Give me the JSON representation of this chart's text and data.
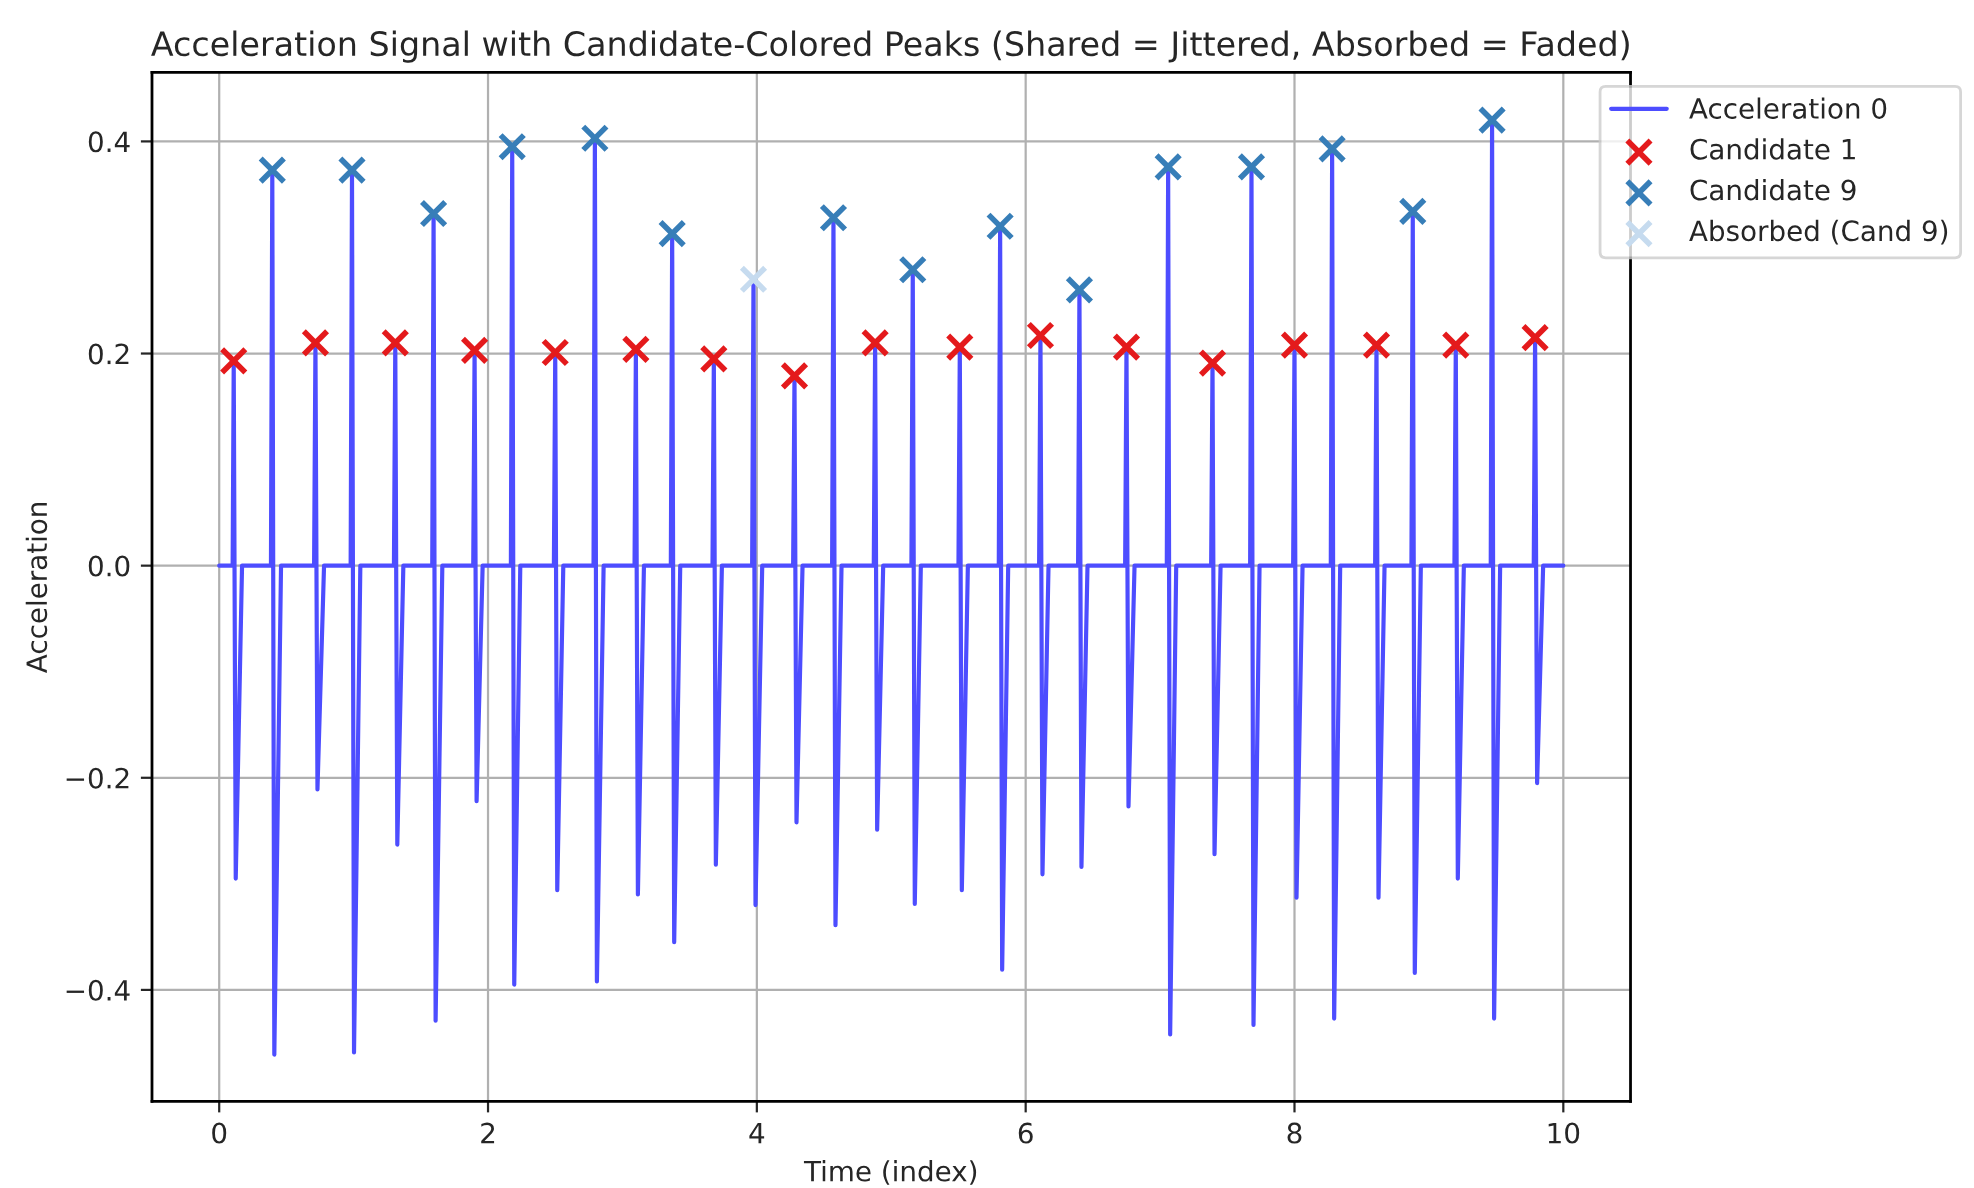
{
  "chart_data": {
    "type": "line",
    "title": "Acceleration Signal with Candidate-Colored Peaks (Shared = Jittered, Absorbed = Faded)",
    "xlabel": "Time (index)",
    "ylabel": "Acceleration",
    "xlim": [
      -0.5,
      10.5
    ],
    "ylim": [
      -0.505,
      0.465
    ],
    "xticks": [
      0,
      2,
      4,
      6,
      8,
      10
    ],
    "yticks": [
      {
        "value": -0.4,
        "label": "−0.4"
      },
      {
        "value": -0.2,
        "label": "−0.2"
      },
      {
        "value": 0,
        "label": "0.0"
      },
      {
        "value": 0.2,
        "label": "0.2"
      },
      {
        "value": 0.4,
        "label": "0.4"
      }
    ],
    "grid": true,
    "legend": "top right",
    "series": [
      {
        "name": "Acceleration 0",
        "color": "#4d4dff",
        "line_style": "solid",
        "marker": "none",
        "x": [
          0,
          0.1,
          0.108,
          0.123,
          0.17,
          0.385,
          0.395,
          0.41,
          0.46,
          0.706,
          0.716,
          0.731,
          0.78,
          0.978,
          0.988,
          1.003,
          1.05,
          1.3,
          1.31,
          1.325,
          1.37,
          1.585,
          1.595,
          1.61,
          1.66,
          1.89,
          1.9,
          1.915,
          1.96,
          2.17,
          2.18,
          2.195,
          2.24,
          2.49,
          2.5,
          2.515,
          2.56,
          2.785,
          2.795,
          2.81,
          2.86,
          3.09,
          3.1,
          3.115,
          3.16,
          3.36,
          3.37,
          3.385,
          3.43,
          3.67,
          3.68,
          3.695,
          3.74,
          3.965,
          3.975,
          3.99,
          4.04,
          4.27,
          4.28,
          4.295,
          4.34,
          4.56,
          4.57,
          4.585,
          4.63,
          4.87,
          4.88,
          4.895,
          4.94,
          5.15,
          5.16,
          5.175,
          5.22,
          5.5,
          5.51,
          5.525,
          5.57,
          5.8,
          5.81,
          5.825,
          5.87,
          6.1,
          6.11,
          6.125,
          6.17,
          6.39,
          6.4,
          6.415,
          6.46,
          6.74,
          6.75,
          6.765,
          6.81,
          7.05,
          7.06,
          7.075,
          7.12,
          7.38,
          7.39,
          7.405,
          7.45,
          7.67,
          7.68,
          7.695,
          7.74,
          7.99,
          8.0,
          8.015,
          8.06,
          8.27,
          8.28,
          8.295,
          8.34,
          8.6,
          8.61,
          8.625,
          8.67,
          8.87,
          8.88,
          8.895,
          8.94,
          9.19,
          9.2,
          9.215,
          9.26,
          9.46,
          9.47,
          9.485,
          9.53,
          9.78,
          9.79,
          9.805,
          9.85,
          10
        ],
        "values": [
          0,
          0,
          0.193,
          -0.295,
          0,
          0,
          0.373,
          -0.461,
          0,
          0,
          0.21,
          -0.211,
          0,
          0,
          0.373,
          -0.459,
          0,
          0,
          0.21,
          -0.263,
          0,
          0,
          0.332,
          -0.429,
          0,
          0,
          0.203,
          -0.222,
          0,
          0,
          0.395,
          -0.395,
          0,
          0,
          0.201,
          -0.306,
          0,
          0,
          0.403,
          -0.392,
          0,
          0,
          0.204,
          -0.31,
          0,
          0,
          0.313,
          -0.355,
          0,
          0,
          0.195,
          -0.282,
          0,
          0,
          0.27,
          -0.32,
          0,
          0,
          0.179,
          -0.242,
          0,
          0,
          0.328,
          -0.339,
          0,
          0,
          0.21,
          -0.249,
          0,
          0,
          0.279,
          -0.319,
          0,
          0,
          0.206,
          -0.306,
          0,
          0,
          0.32,
          -0.381,
          0,
          0,
          0.217,
          -0.291,
          0,
          0,
          0.26,
          -0.284,
          0,
          0,
          0.206,
          -0.227,
          0,
          0,
          0.376,
          -0.442,
          0,
          0,
          0.191,
          -0.272,
          0,
          0,
          0.376,
          -0.433,
          0,
          0,
          0.208,
          -0.313,
          0,
          0,
          0.393,
          -0.427,
          0,
          0,
          0.208,
          -0.313,
          0,
          0,
          0.334,
          -0.384,
          0,
          0,
          0.208,
          -0.295,
          0,
          0,
          0.42,
          -0.427,
          0,
          0,
          0.215,
          -0.205,
          0,
          0
        ]
      },
      {
        "name": "Candidate 1",
        "type": "scatter",
        "color": "#e41a1c",
        "marker": "cross",
        "x": [
          0.108,
          0.716,
          1.31,
          1.9,
          2.5,
          3.1,
          3.68,
          4.28,
          4.88,
          5.51,
          6.11,
          6.75,
          7.39,
          8.0,
          8.61,
          9.2,
          9.79
        ],
        "values": [
          0.193,
          0.21,
          0.21,
          0.203,
          0.201,
          0.204,
          0.195,
          0.179,
          0.21,
          0.206,
          0.217,
          0.206,
          0.191,
          0.208,
          0.208,
          0.208,
          0.215
        ]
      },
      {
        "name": "Candidate 9",
        "type": "scatter",
        "color": "#377eb8",
        "marker": "cross",
        "x": [
          0.395,
          0.988,
          1.595,
          2.18,
          2.795,
          3.37,
          4.57,
          5.16,
          5.81,
          6.4,
          7.06,
          7.68,
          8.28,
          8.88,
          9.47
        ],
        "values": [
          0.373,
          0.373,
          0.332,
          0.395,
          0.403,
          0.313,
          0.328,
          0.279,
          0.32,
          0.26,
          0.376,
          0.376,
          0.393,
          0.334,
          0.42
        ]
      },
      {
        "name": "Absorbed (Cand 9)",
        "type": "scatter",
        "color": "#c6dbef",
        "marker": "cross",
        "x": [
          3.975
        ],
        "values": [
          0.27
        ]
      }
    ]
  }
}
